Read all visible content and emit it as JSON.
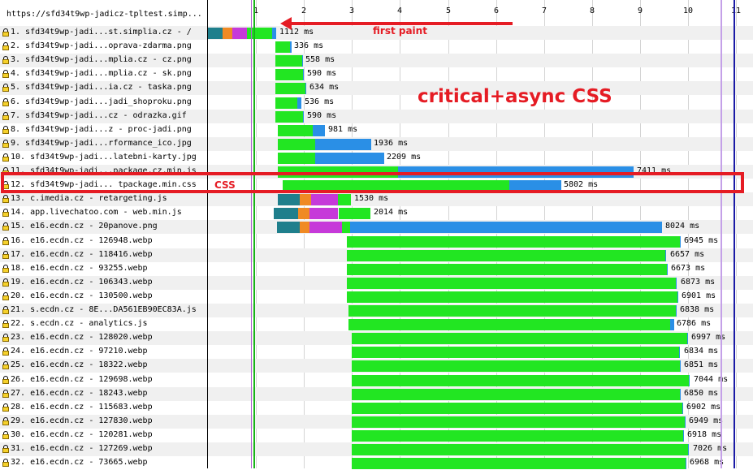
{
  "header": {
    "url_label": "https://sfd34t9wp-jadicz-tpltest.simp..."
  },
  "timeline": {
    "max_s": 11,
    "ticks": [
      "1",
      "2",
      "3",
      "4",
      "5",
      "6",
      "7",
      "8",
      "9",
      "10",
      "11"
    ]
  },
  "colors": {
    "dns": "#1f7f8c",
    "connect": "#f08a24",
    "ssl": "#c63ad9",
    "ttfb": "#22e622",
    "download": "#2a8fe6",
    "highlight": "#e51c24",
    "lock": "#f5d12b"
  },
  "markers": {
    "start_render_s": 0.95,
    "dom_loaded_s": 10.68,
    "onload_s": 10.95
  },
  "annotations": {
    "first_paint": "first paint",
    "headline": "critical+async CSS",
    "css": "CSS"
  },
  "requests": [
    {
      "label": "1. sfd34t9wp-jadi...st.simplia.cz - /",
      "start": 0,
      "phases": [
        [
          "dns",
          0.3
        ],
        [
          "connect",
          0.2
        ],
        [
          "ssl",
          0.32
        ],
        [
          "ttfb",
          0.52
        ],
        [
          "download",
          0.08
        ]
      ],
      "ms": "1112 ms"
    },
    {
      "label": "2. sfd34t9wp-jadi...oprava-zdarma.png",
      "start": 1.4,
      "phases": [
        [
          "ttfb",
          0.3
        ],
        [
          "download",
          0.03
        ]
      ],
      "ms": "336 ms"
    },
    {
      "label": "3. sfd34t9wp-jadi...mplia.cz - cz.png",
      "start": 1.4,
      "phases": [
        [
          "ttfb",
          0.55
        ],
        [
          "download",
          0.02
        ]
      ],
      "ms": "558 ms"
    },
    {
      "label": "4. sfd34t9wp-jadi...mplia.cz - sk.png",
      "start": 1.4,
      "phases": [
        [
          "ttfb",
          0.58
        ],
        [
          "download",
          0.02
        ]
      ],
      "ms": "590 ms"
    },
    {
      "label": "5. sfd34t9wp-jadi...ia.cz - taska.png",
      "start": 1.4,
      "phases": [
        [
          "ttfb",
          0.62
        ],
        [
          "download",
          0.02
        ]
      ],
      "ms": "634 ms"
    },
    {
      "label": "6. sfd34t9wp-jadi...jadi_shoproku.png",
      "start": 1.4,
      "phases": [
        [
          "ttfb",
          0.45
        ],
        [
          "download",
          0.09
        ]
      ],
      "ms": "536 ms"
    },
    {
      "label": "7. sfd34t9wp-jadi...cz - odrazka.gif",
      "start": 1.4,
      "phases": [
        [
          "ttfb",
          0.57
        ],
        [
          "download",
          0.02
        ]
      ],
      "ms": "590 ms"
    },
    {
      "label": "8. sfd34t9wp-jadi...z - proc-jadi.png",
      "start": 1.45,
      "phases": [
        [
          "ttfb",
          0.72
        ],
        [
          "download",
          0.26
        ]
      ],
      "ms": "981 ms"
    },
    {
      "label": "9. sfd34t9wp-jadi...rformance_ico.jpg",
      "start": 1.45,
      "phases": [
        [
          "ttfb",
          0.78
        ],
        [
          "download",
          1.16
        ]
      ],
      "ms": "1936 ms"
    },
    {
      "label": "10. sfd34t9wp-jadi...latebni-karty.jpg",
      "start": 1.45,
      "phases": [
        [
          "ttfb",
          0.78
        ],
        [
          "download",
          1.43
        ]
      ],
      "ms": "2209 ms"
    },
    {
      "label": "11. sfd34t9wp-jadi...package.cz.min.js",
      "start": 1.45,
      "phases": [
        [
          "ttfb",
          2.5
        ],
        [
          "download",
          4.91
        ]
      ],
      "ms": "7411 ms"
    },
    {
      "label": "12. sfd34t9wp-jadi... tpackage.min.css",
      "start": 1.55,
      "phases": [
        [
          "ttfb",
          4.72
        ],
        [
          "download",
          1.08
        ]
      ],
      "ms": "5802 ms"
    },
    {
      "label": "13. c.imedia.cz - retargeting.js",
      "start": 1.45,
      "phases": [
        [
          "dns",
          0.45
        ],
        [
          "connect",
          0.25
        ],
        [
          "ssl",
          0.55
        ],
        [
          "ttfb",
          0.28
        ]
      ],
      "ms": "1530 ms"
    },
    {
      "label": "14. app.livechatoo.com - web.min.js",
      "start": 1.37,
      "phases": [
        [
          "dns",
          0.5
        ],
        [
          "connect",
          0.25
        ],
        [
          "ssl",
          0.6
        ],
        [
          "ttfb",
          0.66
        ]
      ],
      "ms": "2014 ms"
    },
    {
      "label": "15. e16.ecdn.cz - 20panove.png",
      "start": 1.43,
      "phases": [
        [
          "dns",
          0.47
        ],
        [
          "connect",
          0.2
        ],
        [
          "ssl",
          0.68
        ],
        [
          "ttfb",
          0.18
        ],
        [
          "download",
          6.5
        ]
      ],
      "ms": "8024 ms"
    },
    {
      "label": "16. e16.ecdn.cz - 126948.webp",
      "start": 2.9,
      "phases": [
        [
          "ttfb",
          6.93
        ],
        [
          "download",
          0.02
        ]
      ],
      "ms": "6945 ms"
    },
    {
      "label": "17. e16.ecdn.cz - 118416.webp",
      "start": 2.9,
      "phases": [
        [
          "ttfb",
          6.64
        ],
        [
          "download",
          0.02
        ]
      ],
      "ms": "6657 ms"
    },
    {
      "label": "18. e16.ecdn.cz - 93255.webp",
      "start": 2.9,
      "phases": [
        [
          "ttfb",
          6.66
        ],
        [
          "download",
          0.02
        ]
      ],
      "ms": "6673 ms"
    },
    {
      "label": "19. e16.ecdn.cz - 106343.webp",
      "start": 2.9,
      "phases": [
        [
          "ttfb",
          6.86
        ],
        [
          "download",
          0.02
        ]
      ],
      "ms": "6873 ms"
    },
    {
      "label": "20. e16.ecdn.cz - 130500.webp",
      "start": 2.9,
      "phases": [
        [
          "ttfb",
          6.88
        ],
        [
          "download",
          0.02
        ]
      ],
      "ms": "6901 ms"
    },
    {
      "label": "21. s.ecdn.cz - 8E...DA561EB90EC83A.js",
      "start": 2.92,
      "phases": [
        [
          "ttfb",
          6.82
        ],
        [
          "download",
          0.02
        ]
      ],
      "ms": "6838 ms"
    },
    {
      "label": "22. s.ecdn.cz - analytics.js",
      "start": 2.92,
      "phases": [
        [
          "ttfb",
          6.7
        ],
        [
          "download",
          0.08
        ]
      ],
      "ms": "6786 ms"
    },
    {
      "label": "23. e16.ecdn.cz - 128020.webp",
      "start": 3.0,
      "phases": [
        [
          "ttfb",
          6.98
        ],
        [
          "download",
          0.02
        ]
      ],
      "ms": "6997 ms"
    },
    {
      "label": "24. e16.ecdn.cz - 97210.webp",
      "start": 3.0,
      "phases": [
        [
          "ttfb",
          6.82
        ],
        [
          "download",
          0.02
        ]
      ],
      "ms": "6834 ms"
    },
    {
      "label": "25. e16.ecdn.cz - 18322.webp",
      "start": 3.0,
      "phases": [
        [
          "ttfb",
          6.83
        ],
        [
          "download",
          0.02
        ]
      ],
      "ms": "6851 ms"
    },
    {
      "label": "26. e16.ecdn.cz - 129698.webp",
      "start": 3.0,
      "phases": [
        [
          "ttfb",
          7.03
        ],
        [
          "download",
          0.02
        ]
      ],
      "ms": "7044 ms"
    },
    {
      "label": "27. e16.ecdn.cz - 18243.webp",
      "start": 3.0,
      "phases": [
        [
          "ttfb",
          6.83
        ],
        [
          "download",
          0.02
        ]
      ],
      "ms": "6850 ms"
    },
    {
      "label": "28. e16.ecdn.cz - 115683.webp",
      "start": 3.0,
      "phases": [
        [
          "ttfb",
          6.88
        ],
        [
          "download",
          0.02
        ]
      ],
      "ms": "6902 ms"
    },
    {
      "label": "29. e16.ecdn.cz - 127830.webp",
      "start": 3.0,
      "phases": [
        [
          "ttfb",
          6.93
        ],
        [
          "download",
          0.02
        ]
      ],
      "ms": "6949 ms"
    },
    {
      "label": "30. e16.ecdn.cz - 120281.webp",
      "start": 3.0,
      "phases": [
        [
          "ttfb",
          6.9
        ],
        [
          "download",
          0.02
        ]
      ],
      "ms": "6918 ms"
    },
    {
      "label": "31. e16.ecdn.cz - 127269.webp",
      "start": 3.0,
      "phases": [
        [
          "ttfb",
          7.01
        ],
        [
          "download",
          0.02
        ]
      ],
      "ms": "7026 ms"
    },
    {
      "label": "32. e16.ecdn.cz - 73665.webp",
      "start": 3.0,
      "phases": [
        [
          "ttfb",
          6.95
        ],
        [
          "download",
          0.02
        ]
      ],
      "ms": "6968 ms"
    }
  ]
}
